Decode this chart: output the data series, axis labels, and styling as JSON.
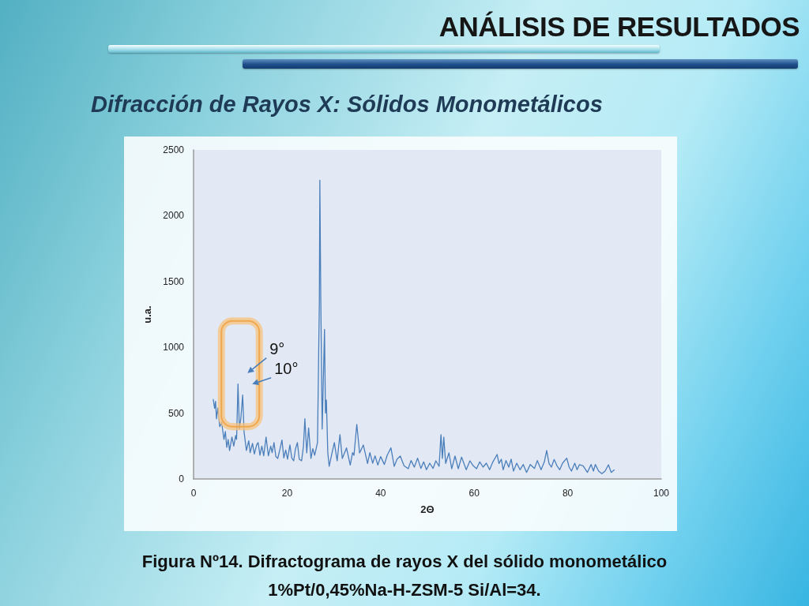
{
  "chart_data": {
    "type": "line",
    "title": "ANÁLISIS DE RESULTADOS",
    "subtitle": "Difracción de Rayos X: Sólidos Monometálicos",
    "xlabel": "2Θ",
    "ylabel": "u.a.",
    "x": [
      4.2,
      4.5,
      4.7,
      4.9,
      5.2,
      5.6,
      6.0,
      6.5,
      6.8,
      7.1,
      7.4,
      7.7,
      8.2,
      8.6,
      9.0,
      9.2,
      9.5,
      9.8,
      10.1,
      10.5,
      10.8,
      11.3,
      11.8,
      12.1,
      12.6,
      13.0,
      13.5,
      13.8,
      14.2,
      14.6,
      15.0,
      15.5,
      16.0,
      16.5,
      16.8,
      17.2,
      17.6,
      18.0,
      18.5,
      18.9,
      19.3,
      19.7,
      20.1,
      20.6,
      21.0,
      21.4,
      21.8,
      22.2,
      22.6,
      23.1,
      23.5,
      23.8,
      24.2,
      24.6,
      25.1,
      25.5,
      25.9,
      26.5,
      26.9,
      27.0,
      27.2,
      27.5,
      28.0,
      28.2,
      28.4,
      28.7,
      29.0,
      29.5,
      30.1,
      30.7,
      31.3,
      31.8,
      32.7,
      33.5,
      34.0,
      34.3,
      34.9,
      35.5,
      36.3,
      37.2,
      37.7,
      38.3,
      38.8,
      39.4,
      40.0,
      40.8,
      41.4,
      42.2,
      42.9,
      43.5,
      44.2,
      45.0,
      45.9,
      46.5,
      47.2,
      47.9,
      48.6,
      49.2,
      49.8,
      50.5,
      51.2,
      51.8,
      52.5,
      52.9,
      53.2,
      53.5,
      53.9,
      54.6,
      55.2,
      55.9,
      56.6,
      57.3,
      58.3,
      59.1,
      59.8,
      60.5,
      61.2,
      61.9,
      62.6,
      63.3,
      64.0,
      64.9,
      65.3,
      65.8,
      66.2,
      66.8,
      67.4,
      67.9,
      68.4,
      69.1,
      69.8,
      70.5,
      71.2,
      72.0,
      72.9,
      73.5,
      74.3,
      75.0,
      75.5,
      76.0,
      76.5,
      77.1,
      77.7,
      78.3,
      78.9,
      79.8,
      80.3,
      80.8,
      81.5,
      82.0,
      82.5,
      83.3,
      84.2,
      85.0,
      85.5,
      85.9,
      86.6,
      87.3,
      88.0,
      88.7,
      89.3,
      90.0
    ],
    "values": [
      607,
      537,
      590,
      457,
      540,
      397,
      430,
      300,
      360,
      240,
      300,
      216,
      318,
      250,
      330,
      300,
      721,
      379,
      457,
      637,
      357,
      216,
      290,
      200,
      270,
      190,
      260,
      276,
      180,
      250,
      176,
      318,
      176,
      250,
      200,
      276,
      170,
      156,
      230,
      296,
      160,
      220,
      150,
      258,
      160,
      138,
      230,
      276,
      150,
      138,
      250,
      457,
      198,
      387,
      156,
      230,
      180,
      276,
      1358,
      2270,
      1376,
      379,
      1136,
      500,
      600,
      200,
      96,
      180,
      276,
      138,
      337,
      156,
      236,
      106,
      200,
      180,
      415,
      198,
      258,
      118,
      200,
      120,
      176,
      106,
      170,
      110,
      180,
      236,
      96,
      150,
      174,
      100,
      78,
      140,
      90,
      158,
      80,
      130,
      70,
      120,
      80,
      138,
      96,
      337,
      156,
      318,
      118,
      198,
      78,
      174,
      78,
      166,
      70,
      138,
      100,
      78,
      130,
      90,
      120,
      70,
      130,
      186,
      118,
      150,
      70,
      140,
      90,
      150,
      60,
      120,
      70,
      110,
      50,
      110,
      80,
      140,
      70,
      130,
      216,
      118,
      90,
      148,
      100,
      70,
      120,
      158,
      90,
      60,
      120,
      70,
      108,
      100,
      50,
      110,
      60,
      110,
      60,
      40,
      60,
      108,
      50,
      70
    ],
    "color": "#4a7ebb",
    "xlim": [
      0,
      100
    ],
    "xticks": [
      0,
      20,
      40,
      60,
      80,
      100
    ],
    "ylim": [
      0,
      2500
    ],
    "yticks": [
      0,
      500,
      1000,
      1500,
      2000,
      2500
    ],
    "grid": false,
    "annotations": [
      {
        "text": "9°",
        "x": 9.5,
        "y": 721
      },
      {
        "text": "10°",
        "x": 10.5,
        "y": 637
      },
      "Figura Nº14. Difractograma de rayos X del sólido monometálico 1%Pt/0,45%Na-H-ZSM-5 Si/Al=34."
    ]
  }
}
